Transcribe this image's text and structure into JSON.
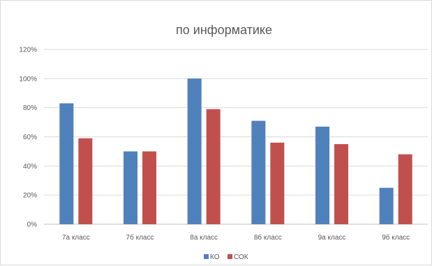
{
  "chart_data": {
    "type": "bar",
    "title": "по информатике",
    "xlabel": "",
    "ylabel": "",
    "categories": [
      "7а класс",
      "7б класс",
      "8а класс",
      "8б класс",
      "9а класс",
      "9б класс"
    ],
    "series": [
      {
        "name": "КО",
        "color": "#4f81bd",
        "values": [
          83,
          50,
          100,
          71,
          67,
          25
        ]
      },
      {
        "name": "СОК",
        "color": "#c0504d",
        "values": [
          59,
          50,
          79,
          56,
          55,
          48
        ]
      }
    ],
    "ylim": [
      0,
      120
    ],
    "yticks": [
      0,
      20,
      40,
      60,
      80,
      100,
      120
    ],
    "ytick_labels": [
      "0%",
      "20%",
      "40%",
      "60%",
      "80%",
      "100%",
      "120%"
    ],
    "grid": true,
    "legend_position": "bottom"
  }
}
